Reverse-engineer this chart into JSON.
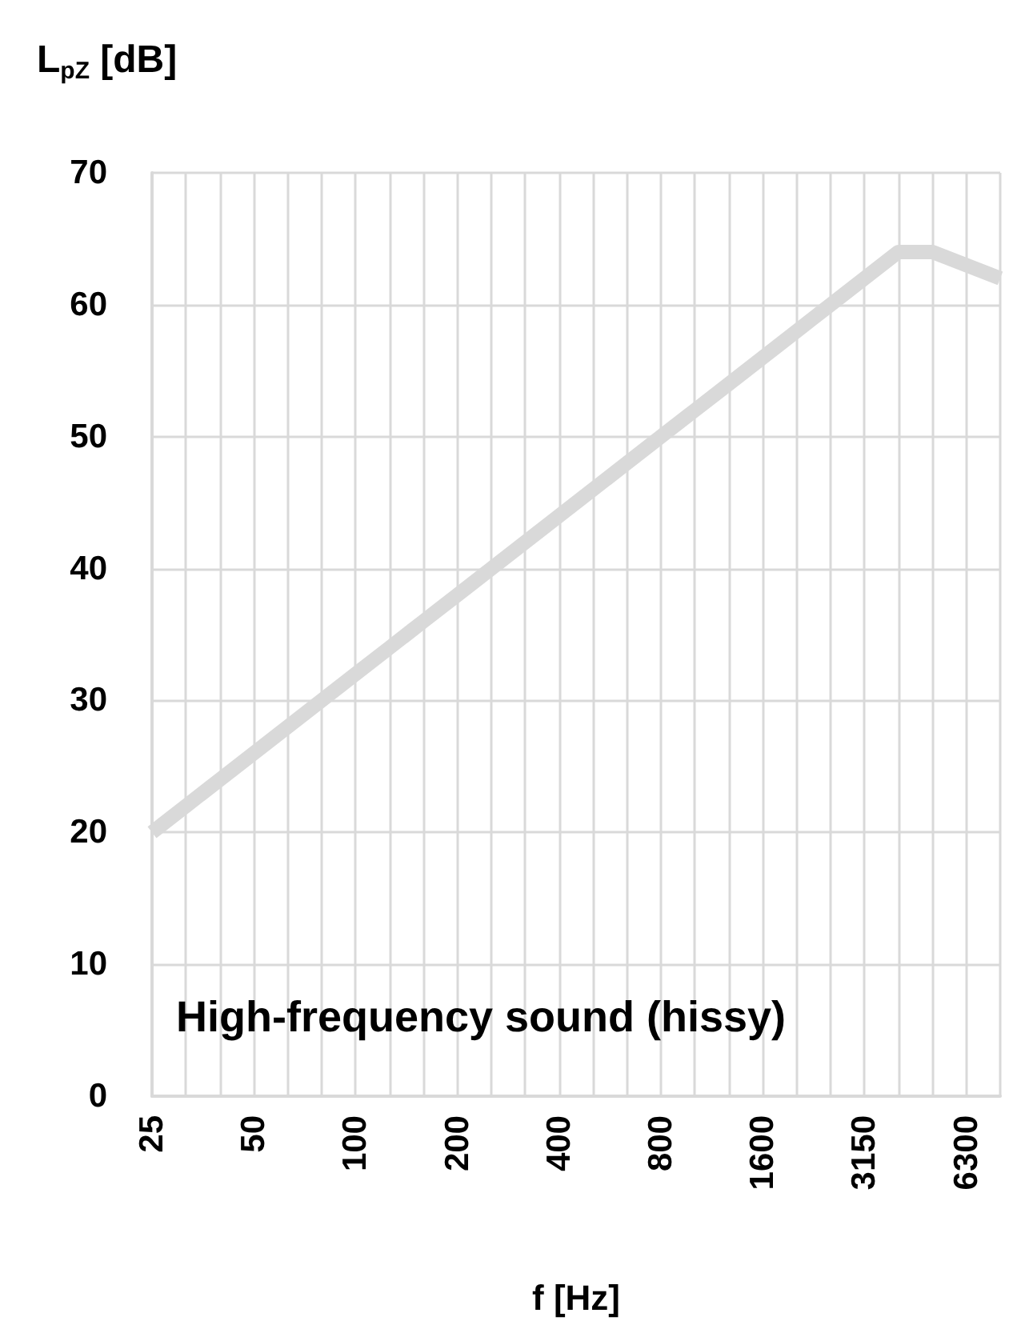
{
  "chart_data": {
    "type": "line",
    "xlabel": "f [Hz]",
    "ylabel": "L$_{pZ}$ [dB]",
    "annotations": [
      "High-frequency sound (hissy)"
    ],
    "categories": [
      "25",
      null,
      null,
      "50",
      null,
      null,
      "100",
      null,
      null,
      "200",
      null,
      null,
      "400",
      null,
      null,
      "800",
      null,
      null,
      "1600",
      null,
      null,
      "3150",
      null,
      null,
      "6300",
      null
    ],
    "series": [
      {
        "color": "#d9d9d9",
        "values": [
          20,
          22,
          24,
          26,
          28,
          30,
          32,
          34,
          36,
          38,
          40,
          42,
          44,
          46,
          48,
          50,
          52,
          54,
          56,
          58,
          60,
          62,
          64,
          64,
          63,
          62
        ]
      }
    ],
    "ylim": [
      0,
      70
    ],
    "yticks": [
      0,
      10,
      20,
      30,
      40,
      50,
      60,
      70
    ],
    "grid": true,
    "marker": "none",
    "line_style": "solid"
  }
}
